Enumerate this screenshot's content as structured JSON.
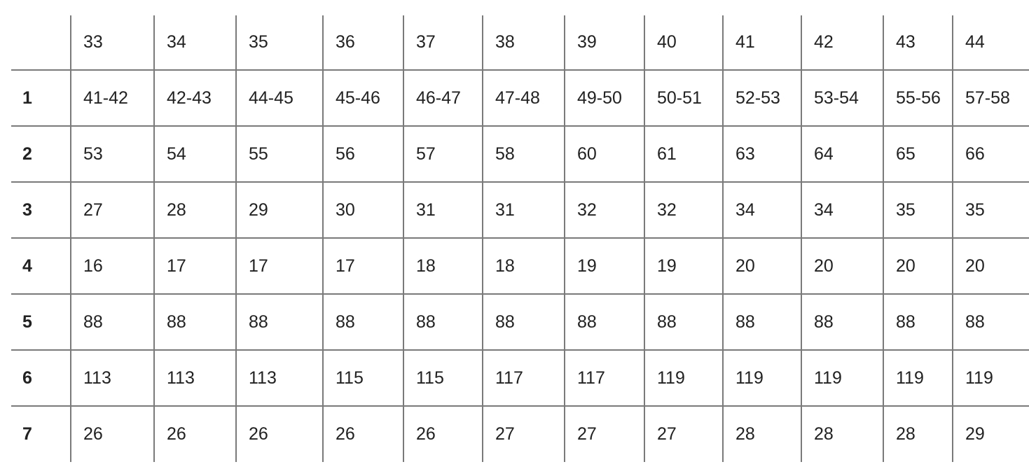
{
  "table": {
    "header": [
      "",
      "33",
      "34",
      "35",
      "36",
      "37",
      "38",
      "39",
      "40",
      "41",
      "42",
      "43",
      "44"
    ],
    "rows": [
      [
        "1",
        "41-42",
        "42-43",
        "44-45",
        "45-46",
        "46-47",
        "47-48",
        "49-50",
        "50-51",
        "52-53",
        "53-54",
        "55-56",
        "57-58"
      ],
      [
        "2",
        "53",
        "54",
        "55",
        "56",
        "57",
        "58",
        "60",
        "61",
        "63",
        "64",
        "65",
        "66"
      ],
      [
        "3",
        "27",
        "28",
        "29",
        "30",
        "31",
        "31",
        "32",
        "32",
        "34",
        "34",
        "35",
        "35"
      ],
      [
        "4",
        "16",
        "17",
        "17",
        "17",
        "18",
        "18",
        "19",
        "19",
        "20",
        "20",
        "20",
        "20"
      ],
      [
        "5",
        "88",
        "88",
        "88",
        "88",
        "88",
        "88",
        "88",
        "88",
        "88",
        "88",
        "88",
        "88"
      ],
      [
        "6",
        "113",
        "113",
        "113",
        "115",
        "115",
        "117",
        "117",
        "119",
        "119",
        "119",
        "119",
        "119"
      ],
      [
        "7",
        "26",
        "26",
        "26",
        "26",
        "26",
        "27",
        "27",
        "27",
        "28",
        "28",
        "28",
        "29"
      ]
    ]
  }
}
